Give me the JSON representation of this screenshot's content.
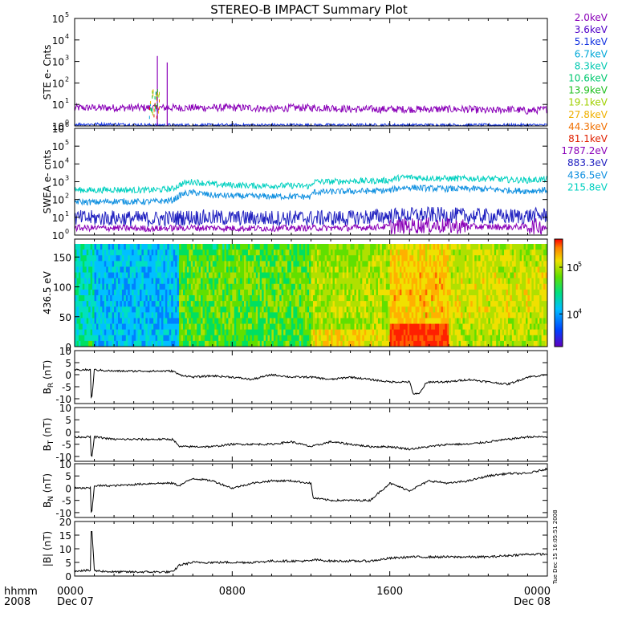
{
  "title": "STEREO-B IMPACT Summary Plot",
  "stamp": "Tue Dec 15 16:05:51 2008",
  "footer": {
    "hhmm": "hhmm",
    "year": "2008",
    "ticks": [
      {
        "hour": 0,
        "label": "0000",
        "sub": "Dec 07"
      },
      {
        "hour": 8,
        "label": "0800",
        "sub": ""
      },
      {
        "hour": 16,
        "label": "1600",
        "sub": ""
      },
      {
        "hour": 24,
        "label": "0000",
        "sub": "Dec 08"
      }
    ]
  },
  "legend_energies": [
    {
      "label": "2.0keV",
      "color": "#8a00b8"
    },
    {
      "label": "3.6keV",
      "color": "#5000c8"
    },
    {
      "label": "5.1keV",
      "color": "#1030e0"
    },
    {
      "label": "6.7keV",
      "color": "#00a8d8"
    },
    {
      "label": "8.3keV",
      "color": "#00c8b0"
    },
    {
      "label": "10.6keV",
      "color": "#00c870"
    },
    {
      "label": "13.9keV",
      "color": "#20c020"
    },
    {
      "label": "19.1keV",
      "color": "#a0d000"
    },
    {
      "label": "27.8keV",
      "color": "#f0b000"
    },
    {
      "label": "44.3keV",
      "color": "#f07000"
    },
    {
      "label": "81.1keV",
      "color": "#e02000"
    },
    {
      "label": "1787.2eV",
      "color": "#8a00b8"
    },
    {
      "label": "883.3eV",
      "color": "#2020c0"
    },
    {
      "label": "436.5eV",
      "color": "#1090e0"
    },
    {
      "label": "215.8eV",
      "color": "#00d0c0"
    }
  ],
  "chart_data": [
    {
      "type": "line",
      "id": "ste",
      "ylabel": "STE e- Cnts",
      "yscale": "log",
      "ylim": [
        1,
        100000
      ],
      "yticks": [
        {
          "v": 1,
          "label": "10",
          "exp": "0"
        },
        {
          "v": 10,
          "label": "10",
          "exp": "1"
        },
        {
          "v": 100,
          "label": "10",
          "exp": "2"
        },
        {
          "v": 1000,
          "label": "10",
          "exp": "3"
        },
        {
          "v": 10000,
          "label": "10",
          "exp": "4"
        },
        {
          "v": 100000,
          "label": "10",
          "exp": "5"
        }
      ],
      "series": [
        {
          "name": "2.0keV",
          "color": "#8a00b8",
          "x": [
            0,
            1,
            2,
            3,
            3.5,
            4,
            5,
            6,
            7,
            8,
            9,
            10,
            11,
            12,
            13,
            14,
            15,
            16,
            17,
            18,
            19,
            20,
            21,
            22,
            23,
            24
          ],
          "y": [
            7,
            7,
            7,
            7,
            7,
            7,
            7,
            7,
            7,
            7,
            7,
            6,
            7,
            7,
            7,
            6,
            6,
            6,
            6,
            6,
            6,
            6,
            5,
            6,
            5,
            6
          ]
        },
        {
          "name": "5.1keV",
          "color": "#1030e0",
          "x": [
            0,
            2,
            4,
            6,
            8,
            10,
            12,
            14,
            16,
            18,
            20,
            22,
            24
          ],
          "y": [
            1.2,
            1.2,
            1.1,
            1.1,
            1.1,
            1.1,
            1.1,
            1.1,
            1.1,
            1.1,
            1.1,
            1.1,
            1.1
          ]
        }
      ],
      "spikes": [
        {
          "x": 4.2,
          "y": 1800,
          "color": "#8a00b8"
        },
        {
          "x": 4.7,
          "y": 900,
          "color": "#8a00b8"
        }
      ]
    },
    {
      "type": "line",
      "id": "swea",
      "ylabel": "SWEA e- cnts",
      "yscale": "log",
      "ylim": [
        1,
        1000000
      ],
      "yticks": [
        {
          "v": 1,
          "label": "10",
          "exp": "0"
        },
        {
          "v": 10,
          "label": "10",
          "exp": "1"
        },
        {
          "v": 100,
          "label": "10",
          "exp": "2"
        },
        {
          "v": 1000,
          "label": "10",
          "exp": "3"
        },
        {
          "v": 10000,
          "label": "10",
          "exp": "4"
        },
        {
          "v": 100000,
          "label": "10",
          "exp": "5"
        },
        {
          "v": 1000000,
          "label": "10",
          "exp": "6"
        }
      ],
      "series": [
        {
          "name": "215.8eV",
          "color": "#00d0c0",
          "x": [
            0,
            1,
            2,
            3,
            4,
            5,
            5.5,
            6,
            7,
            8,
            9,
            10,
            11,
            12,
            12.1,
            13,
            14,
            15,
            16,
            16.5,
            17,
            18,
            19,
            20,
            21,
            22,
            23,
            24
          ],
          "y": [
            350,
            330,
            360,
            340,
            340,
            400,
            800,
            1000,
            700,
            650,
            600,
            600,
            600,
            550,
            1000,
            1000,
            1100,
            1100,
            1200,
            1700,
            1800,
            1600,
            1500,
            1500,
            1500,
            1300,
            1200,
            1400
          ]
        },
        {
          "name": "436.5eV",
          "color": "#1090e0",
          "x": [
            0,
            1,
            2,
            3,
            4,
            5,
            5.5,
            6,
            7,
            8,
            9,
            10,
            11,
            12,
            12.1,
            13,
            14,
            15,
            16,
            16.5,
            17,
            18,
            19,
            20,
            21,
            22,
            23,
            24
          ],
          "y": [
            75,
            70,
            80,
            75,
            75,
            90,
            200,
            250,
            170,
            160,
            150,
            150,
            150,
            140,
            260,
            270,
            290,
            300,
            320,
            450,
            480,
            420,
            400,
            400,
            380,
            330,
            300,
            350
          ]
        },
        {
          "name": "883.3eV",
          "color": "#2020c0",
          "x": [
            0,
            2,
            4,
            6,
            8,
            10,
            12,
            14,
            16,
            18,
            20,
            22,
            24
          ],
          "y": [
            9,
            9,
            8,
            10,
            9,
            9,
            9,
            9,
            12,
            14,
            12,
            11,
            13
          ]
        },
        {
          "name": "1787.2eV",
          "color": "#8a00b8",
          "x": [
            0,
            2,
            4,
            6,
            8,
            10,
            12,
            14,
            16,
            18,
            20,
            22,
            24
          ],
          "y": [
            2.5,
            2.5,
            2.3,
            2.6,
            2.4,
            2.4,
            2.5,
            2.5,
            3,
            3.5,
            3,
            2.8,
            3.2
          ]
        }
      ]
    },
    {
      "type": "heatmap",
      "id": "pad",
      "ylabel": "436.5 eV",
      "ylim": [
        0,
        180
      ],
      "yticks": [
        0,
        50,
        100,
        150
      ],
      "colorbar_ticks": [
        {
          "v": 10000,
          "label": "10",
          "exp": "4"
        },
        {
          "v": 100000,
          "label": "10",
          "exp": "5"
        }
      ],
      "colorbar_range": [
        2000,
        400000
      ]
    },
    {
      "type": "line",
      "id": "br",
      "ylabel": "B",
      "ylabel_sub": "R",
      "ylabel_unit": "(nT)",
      "ylim": [
        -12,
        10
      ],
      "yticks": [
        -10,
        -5,
        0,
        5,
        10
      ],
      "series": [
        {
          "name": "",
          "color": "#000000",
          "x": [
            0,
            0.5,
            0.8,
            0.85,
            1,
            2,
            3,
            4,
            5,
            5.3,
            6,
            7,
            8,
            9,
            10,
            11,
            12,
            13,
            14,
            15,
            16,
            17,
            17.2,
            17.5,
            17.8,
            18,
            19,
            20,
            21,
            22,
            23,
            24
          ],
          "y": [
            2,
            2,
            2,
            -12,
            2,
            1.5,
            1.5,
            1.5,
            1.5,
            0,
            -1,
            -0.5,
            -1,
            -2,
            0,
            -1,
            -1,
            -2,
            -1,
            -2,
            -3,
            -3,
            -8,
            -8,
            -4,
            -3,
            -3,
            -2,
            -3,
            -4,
            -1,
            0
          ]
        }
      ]
    },
    {
      "type": "line",
      "id": "bt",
      "ylabel": "B",
      "ylabel_sub": "T",
      "ylabel_unit": "(nT)",
      "ylim": [
        -12,
        10
      ],
      "yticks": [
        -10,
        -5,
        0,
        5,
        10
      ],
      "series": [
        {
          "name": "",
          "color": "#000000",
          "x": [
            0,
            0.5,
            0.8,
            0.85,
            1,
            2,
            3,
            4,
            5,
            5.3,
            6,
            7,
            8,
            9,
            10,
            11,
            12,
            13,
            14,
            15,
            16,
            17,
            18,
            19,
            20,
            21,
            22,
            23,
            24
          ],
          "y": [
            -2,
            -2,
            -2,
            -12,
            -2,
            -3,
            -3,
            -3,
            -3,
            -6,
            -6,
            -6,
            -5,
            -5,
            -5,
            -4,
            -6,
            -4,
            -5,
            -6,
            -6,
            -7,
            -6,
            -5,
            -5,
            -4,
            -3,
            -2,
            -2
          ]
        }
      ]
    },
    {
      "type": "line",
      "id": "bn",
      "ylabel": "B",
      "ylabel_sub": "N",
      "ylabel_unit": "(nT)",
      "ylim": [
        -12,
        10
      ],
      "yticks": [
        -10,
        -5,
        0,
        5,
        10
      ],
      "series": [
        {
          "name": "",
          "color": "#000000",
          "x": [
            0,
            0.5,
            0.8,
            0.85,
            1,
            2,
            3,
            4,
            5,
            5.3,
            6,
            7,
            8,
            9,
            10,
            11,
            12,
            12.1,
            13,
            14,
            15,
            16,
            17,
            18,
            19,
            20,
            21,
            22,
            23,
            24
          ],
          "y": [
            0,
            0,
            0,
            -12,
            1,
            1,
            1.5,
            2,
            2,
            1,
            4,
            3,
            0,
            2,
            3,
            3,
            2,
            -4,
            -5,
            -5,
            -5,
            2,
            -1,
            3,
            2,
            3,
            5,
            6,
            6,
            8
          ]
        }
      ]
    },
    {
      "type": "line",
      "id": "bmag",
      "ylabel": "|B|",
      "ylabel_unit": "(nT)",
      "ylim": [
        0,
        20
      ],
      "yticks": [
        0,
        5,
        10,
        15,
        20
      ],
      "series": [
        {
          "name": "",
          "color": "#000000",
          "x": [
            0,
            0.5,
            0.8,
            0.85,
            1,
            2,
            3,
            4,
            5,
            5.3,
            6,
            7,
            8,
            9,
            10,
            11,
            12,
            12.1,
            13,
            14,
            15,
            16,
            17,
            18,
            19,
            20,
            21,
            22,
            23,
            24
          ],
          "y": [
            2,
            2,
            2,
            20,
            2,
            1.5,
            1.5,
            1.5,
            1.5,
            4,
            5,
            5,
            5,
            5,
            5.5,
            5.5,
            5.5,
            6,
            5.5,
            5.5,
            5.5,
            6.5,
            7,
            7,
            7,
            7,
            7,
            7.5,
            8,
            8
          ]
        }
      ]
    }
  ]
}
